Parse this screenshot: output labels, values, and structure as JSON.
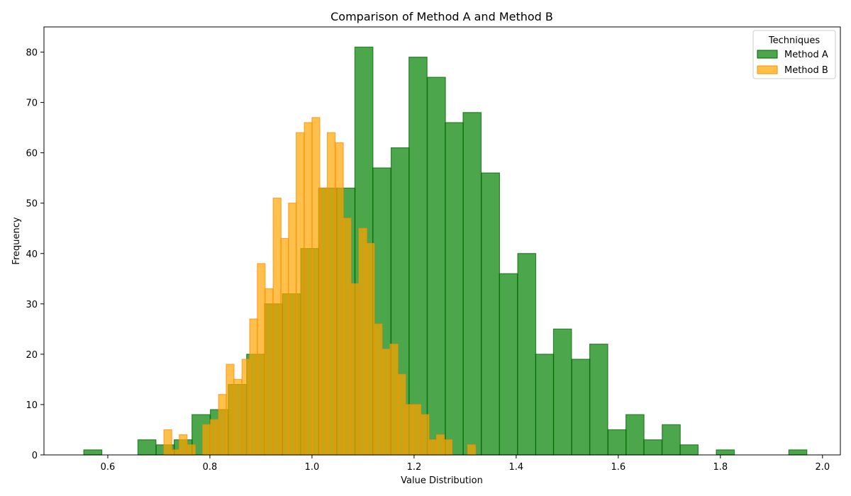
{
  "chart_data": {
    "type": "bar",
    "title": "Comparison of Method A and Method B",
    "xlabel": "Value Distribution",
    "ylabel": "Frequency",
    "xlim": [
      0.475,
      2.035
    ],
    "ylim": [
      0,
      85
    ],
    "xticks": [
      0.6,
      0.8,
      1.0,
      1.2,
      1.4,
      1.6,
      1.8,
      2.0
    ],
    "yticks": [
      0,
      10,
      20,
      30,
      40,
      50,
      60,
      70,
      80
    ],
    "legend": {
      "title": "Techniques",
      "position": "top-right"
    },
    "series": [
      {
        "name": "Method A",
        "color": "#008000",
        "edge_color": "#006400",
        "alpha": 0.7,
        "bin_width": 0.0354,
        "bins": [
          {
            "x0": 0.553,
            "count": 1
          },
          {
            "x0": 0.588,
            "count": 0
          },
          {
            "x0": 0.624,
            "count": 0
          },
          {
            "x0": 0.659,
            "count": 3
          },
          {
            "x0": 0.695,
            "count": 2
          },
          {
            "x0": 0.73,
            "count": 3
          },
          {
            "x0": 0.765,
            "count": 8
          },
          {
            "x0": 0.801,
            "count": 9
          },
          {
            "x0": 0.836,
            "count": 14
          },
          {
            "x0": 0.872,
            "count": 20
          },
          {
            "x0": 0.907,
            "count": 30
          },
          {
            "x0": 0.942,
            "count": 32
          },
          {
            "x0": 0.978,
            "count": 41
          },
          {
            "x0": 1.013,
            "count": 53
          },
          {
            "x0": 1.049,
            "count": 53
          },
          {
            "x0": 1.084,
            "count": 81
          },
          {
            "x0": 1.119,
            "count": 57
          },
          {
            "x0": 1.155,
            "count": 61
          },
          {
            "x0": 1.19,
            "count": 79
          },
          {
            "x0": 1.226,
            "count": 75
          },
          {
            "x0": 1.261,
            "count": 66
          },
          {
            "x0": 1.296,
            "count": 68
          },
          {
            "x0": 1.332,
            "count": 56
          },
          {
            "x0": 1.367,
            "count": 36
          },
          {
            "x0": 1.403,
            "count": 40
          },
          {
            "x0": 1.438,
            "count": 20
          },
          {
            "x0": 1.473,
            "count": 25
          },
          {
            "x0": 1.509,
            "count": 19
          },
          {
            "x0": 1.544,
            "count": 22
          },
          {
            "x0": 1.58,
            "count": 5
          },
          {
            "x0": 1.615,
            "count": 8
          },
          {
            "x0": 1.65,
            "count": 3
          },
          {
            "x0": 1.686,
            "count": 6
          },
          {
            "x0": 1.721,
            "count": 2
          },
          {
            "x0": 1.757,
            "count": 0
          },
          {
            "x0": 1.792,
            "count": 1
          },
          {
            "x0": 1.827,
            "count": 0
          },
          {
            "x0": 1.863,
            "count": 0
          },
          {
            "x0": 1.898,
            "count": 0
          },
          {
            "x0": 1.934,
            "count": 1
          }
        ]
      },
      {
        "name": "Method B",
        "color": "#FFA500",
        "edge_color": "#FF8C00",
        "alpha": 0.7,
        "bin_width": 0.0153,
        "bins": [
          {
            "x0": 0.71,
            "count": 5
          },
          {
            "x0": 0.725,
            "count": 1
          },
          {
            "x0": 0.74,
            "count": 4
          },
          {
            "x0": 0.756,
            "count": 2
          },
          {
            "x0": 0.771,
            "count": 0
          },
          {
            "x0": 0.786,
            "count": 6
          },
          {
            "x0": 0.801,
            "count": 7
          },
          {
            "x0": 0.817,
            "count": 12
          },
          {
            "x0": 0.832,
            "count": 18
          },
          {
            "x0": 0.847,
            "count": 15
          },
          {
            "x0": 0.863,
            "count": 19
          },
          {
            "x0": 0.878,
            "count": 27
          },
          {
            "x0": 0.893,
            "count": 38
          },
          {
            "x0": 0.908,
            "count": 33
          },
          {
            "x0": 0.924,
            "count": 51
          },
          {
            "x0": 0.939,
            "count": 43
          },
          {
            "x0": 0.954,
            "count": 50
          },
          {
            "x0": 0.969,
            "count": 64
          },
          {
            "x0": 0.985,
            "count": 66
          },
          {
            "x0": 1.0,
            "count": 67
          },
          {
            "x0": 1.015,
            "count": 53
          },
          {
            "x0": 1.03,
            "count": 64
          },
          {
            "x0": 1.046,
            "count": 62
          },
          {
            "x0": 1.061,
            "count": 47
          },
          {
            "x0": 1.076,
            "count": 34
          },
          {
            "x0": 1.092,
            "count": 45
          },
          {
            "x0": 1.107,
            "count": 42
          },
          {
            "x0": 1.122,
            "count": 26
          },
          {
            "x0": 1.137,
            "count": 21
          },
          {
            "x0": 1.153,
            "count": 22
          },
          {
            "x0": 1.168,
            "count": 16
          },
          {
            "x0": 1.183,
            "count": 10
          },
          {
            "x0": 1.198,
            "count": 10
          },
          {
            "x0": 1.214,
            "count": 8
          },
          {
            "x0": 1.229,
            "count": 3
          },
          {
            "x0": 1.244,
            "count": 4
          },
          {
            "x0": 1.259,
            "count": 3
          },
          {
            "x0": 1.275,
            "count": 0
          },
          {
            "x0": 1.29,
            "count": 0
          },
          {
            "x0": 1.305,
            "count": 2
          }
        ]
      }
    ]
  }
}
